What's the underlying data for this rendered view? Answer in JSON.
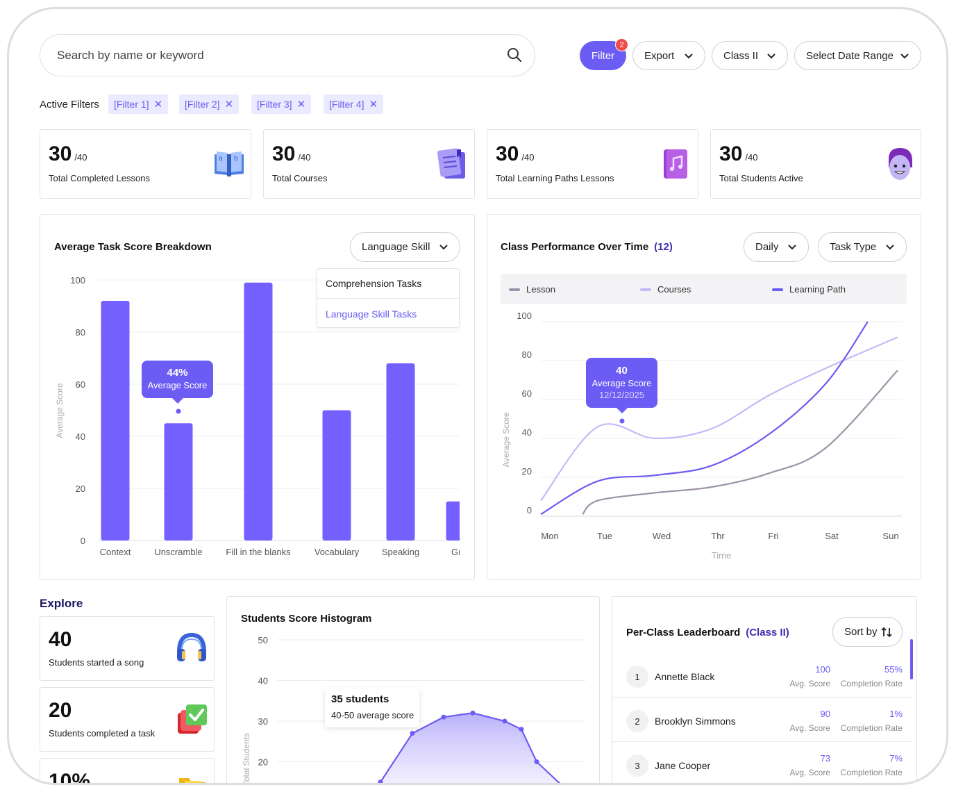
{
  "search": {
    "placeholder": "Search by name or keyword"
  },
  "toolbar": {
    "filter_label": "Filter",
    "filter_count": "2",
    "export_label": "Export",
    "class_label": "Class II",
    "date_label": "Select Date Range"
  },
  "active_filters": {
    "label": "Active Filters",
    "chips": [
      "[Filter 1]",
      "[Filter 2]",
      "[Filter 3]",
      "[Filter 4]"
    ]
  },
  "stats": [
    {
      "value": "30",
      "denom": "/40",
      "label": "Total Completed Lessons",
      "icon": "book-icon"
    },
    {
      "value": "30",
      "denom": "/40",
      "label": "Total Courses",
      "icon": "document-icon"
    },
    {
      "value": "30",
      "denom": "/40",
      "label": "Total Learning Paths Lessons",
      "icon": "music-book-icon"
    },
    {
      "value": "30",
      "denom": "/40",
      "label": "Total Students Active",
      "icon": "student-avatar-icon"
    }
  ],
  "task_score": {
    "title": "Average Task Score Breakdown",
    "dropdown_label": "Language Skill",
    "menu": [
      "Comprehension Tasks",
      "Language Skill Tasks"
    ],
    "tooltip": {
      "value": "44%",
      "label": "Average Score"
    }
  },
  "performance": {
    "title": "Class Performance Over Time",
    "count": "(12)",
    "period_label": "Daily",
    "type_label": "Task Type",
    "tooltip": {
      "value": "40",
      "label": "Average Score",
      "date": "12/12/2025"
    }
  },
  "explore": {
    "title": "Explore",
    "cards": [
      {
        "value": "40",
        "label": "Students started a song",
        "icon": "headphones-icon"
      },
      {
        "value": "20",
        "label": "Students completed a task",
        "icon": "checkbox-icon"
      },
      {
        "value": "10%",
        "label": "",
        "icon": "folder-icon"
      }
    ]
  },
  "histogram": {
    "title": "Students Score Histogram",
    "tooltip": {
      "value": "35 students",
      "label": "40-50 average score"
    }
  },
  "leaderboard": {
    "title": "Per-Class Leaderboard",
    "class": "(Class II)",
    "sort_label": "Sort by",
    "avg_label": "Avg. Score",
    "rate_label": "Completion Rate",
    "rows": [
      {
        "rank": "1",
        "name": "Annette Black",
        "score": "100",
        "rate": "55%"
      },
      {
        "rank": "2",
        "name": "Brooklyn Simmons",
        "score": "90",
        "rate": "1%"
      },
      {
        "rank": "3",
        "name": "Jane Cooper",
        "score": "73",
        "rate": "7%"
      }
    ]
  },
  "colors": {
    "accent": "#6b5cf3",
    "lesson": "#9e93a6",
    "courses": "#c8b8f8",
    "learning_path": "#6b5cf3"
  },
  "chart_data": [
    {
      "type": "bar",
      "title": "Average Task Score Breakdown",
      "categories": [
        "Context",
        "Unscramble",
        "Fill in the blanks",
        "Vocabulary",
        "Speaking",
        "Grar"
      ],
      "values": [
        92,
        45,
        99,
        50,
        68,
        15
      ],
      "ylabel": "Average Score",
      "ylim": [
        0,
        100
      ],
      "yticks": [
        0,
        20,
        40,
        60,
        80,
        100
      ]
    },
    {
      "type": "line",
      "title": "Class Performance Over Time",
      "categories": [
        "Mon",
        "Tue",
        "Wed",
        "Thr",
        "Fri",
        "Sat",
        "Sun"
      ],
      "xlabel": "Time",
      "ylabel": "Average Score",
      "ylim": [
        0,
        100
      ],
      "yticks": [
        0,
        20,
        40,
        60,
        80,
        100
      ],
      "legend_position": "top",
      "series": [
        {
          "name": "Lesson",
          "values": [
            null,
            8,
            12,
            15,
            22,
            35,
            75
          ]
        },
        {
          "name": "Courses",
          "values": [
            8,
            46,
            40,
            45,
            62,
            76,
            92
          ]
        },
        {
          "name": "Learning Path",
          "values": [
            1,
            18,
            21,
            26,
            42,
            68,
            100
          ]
        }
      ]
    },
    {
      "type": "area",
      "title": "Students Score Histogram",
      "ylabel": "Total Students",
      "ylim": [
        10,
        50
      ],
      "yticks": [
        20,
        30,
        40,
        50
      ],
      "values": [
        15,
        27,
        31,
        32,
        30,
        28,
        20,
        12
      ]
    }
  ]
}
